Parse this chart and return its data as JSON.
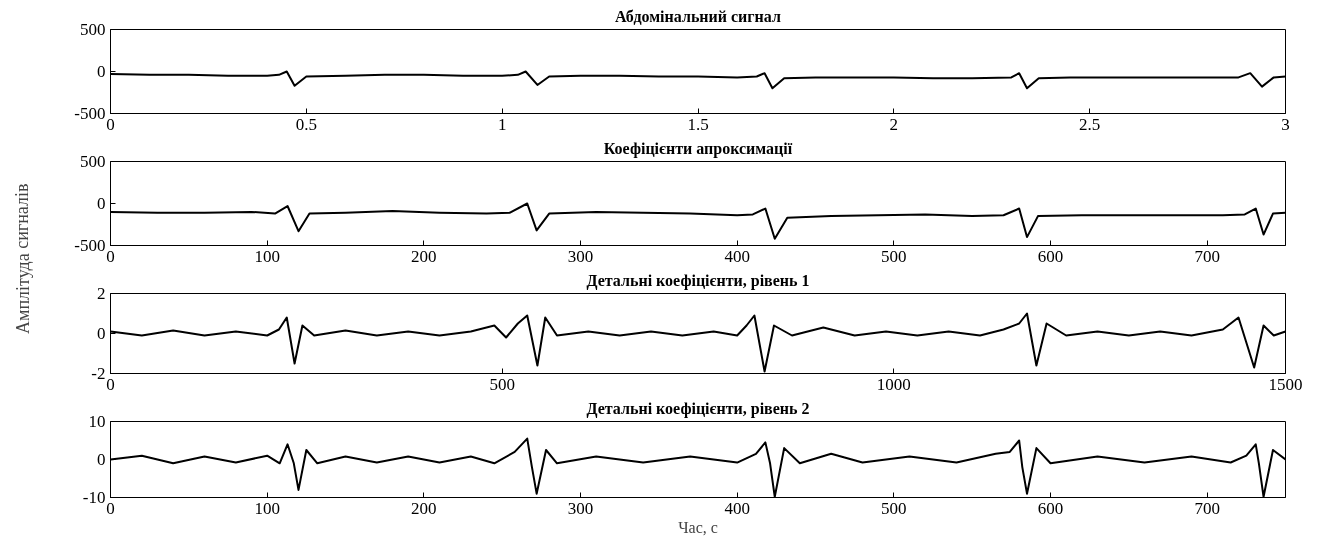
{
  "chart_data": [
    {
      "type": "line",
      "title": "Абдомінальний сигнал",
      "grid": false,
      "marker": "none",
      "line_style": "solid",
      "xlim": [
        0,
        3
      ],
      "xticks": [
        0,
        0.5,
        1,
        1.5,
        2,
        2.5,
        3
      ],
      "ylim": [
        -500,
        500
      ],
      "yticks": [
        -500,
        0,
        500
      ],
      "series": [
        {
          "color": "#000000",
          "x": [
            0,
            0.1,
            0.2,
            0.3,
            0.4,
            0.43,
            0.45,
            0.47,
            0.5,
            0.6,
            0.7,
            0.8,
            0.9,
            1.0,
            1.04,
            1.06,
            1.09,
            1.12,
            1.2,
            1.3,
            1.4,
            1.5,
            1.6,
            1.65,
            1.67,
            1.69,
            1.72,
            1.8,
            1.9,
            2.0,
            2.1,
            2.2,
            2.3,
            2.32,
            2.34,
            2.37,
            2.45,
            2.6,
            2.7,
            2.8,
            2.88,
            2.91,
            2.94,
            2.97,
            3.0
          ],
          "values": [
            -30,
            -40,
            -40,
            -50,
            -50,
            -40,
            0,
            -170,
            -60,
            -50,
            -40,
            -40,
            -50,
            -50,
            -40,
            0,
            -160,
            -60,
            -50,
            -50,
            -60,
            -60,
            -70,
            -60,
            -20,
            -200,
            -80,
            -70,
            -70,
            -70,
            -80,
            -80,
            -70,
            -20,
            -200,
            -80,
            -70,
            -70,
            -70,
            -70,
            -70,
            -20,
            -180,
            -70,
            -60
          ]
        }
      ]
    },
    {
      "type": "line",
      "title": "Коефіцієнти апроксимації",
      "grid": false,
      "marker": "none",
      "line_style": "solid",
      "xlim": [
        0,
        750
      ],
      "xticks": [
        0,
        100,
        200,
        300,
        400,
        500,
        600,
        700
      ],
      "ylim": [
        -500,
        500
      ],
      "yticks": [
        -500,
        0,
        500
      ],
      "series": [
        {
          "color": "#000000",
          "x": [
            0,
            30,
            60,
            90,
            105,
            113,
            120,
            127,
            150,
            180,
            210,
            240,
            255,
            266,
            272,
            280,
            310,
            340,
            370,
            400,
            410,
            418,
            424,
            432,
            460,
            490,
            520,
            550,
            570,
            580,
            585,
            592,
            620,
            650,
            680,
            710,
            724,
            731,
            736,
            742,
            750
          ],
          "values": [
            -100,
            -110,
            -110,
            -100,
            -120,
            -30,
            -330,
            -120,
            -110,
            -90,
            -110,
            -120,
            -110,
            0,
            -320,
            -120,
            -100,
            -110,
            -120,
            -140,
            -130,
            -60,
            -420,
            -170,
            -150,
            -140,
            -130,
            -150,
            -140,
            -60,
            -400,
            -150,
            -140,
            -140,
            -140,
            -140,
            -130,
            -60,
            -370,
            -120,
            -110
          ]
        }
      ]
    },
    {
      "type": "line",
      "title": "Детальні коефіцієнти, рівень 1",
      "ylabel": "Амплітуда сигналів",
      "grid": false,
      "marker": "none",
      "line_style": "solid",
      "xlim": [
        0,
        1500
      ],
      "xticks": [
        0,
        500,
        1000,
        1500
      ],
      "ylim": [
        -2,
        2
      ],
      "yticks": [
        -2,
        0,
        2
      ],
      "series": [
        {
          "color": "#000000",
          "x": [
            0,
            40,
            80,
            120,
            160,
            200,
            215,
            225,
            235,
            245,
            260,
            300,
            340,
            380,
            420,
            460,
            490,
            505,
            520,
            532,
            545,
            555,
            570,
            610,
            650,
            690,
            730,
            770,
            800,
            812,
            822,
            835,
            847,
            870,
            910,
            950,
            990,
            1030,
            1070,
            1110,
            1140,
            1160,
            1170,
            1182,
            1195,
            1220,
            1260,
            1300,
            1340,
            1380,
            1420,
            1440,
            1460,
            1472,
            1485,
            1500
          ],
          "values": [
            0.1,
            -0.1,
            0.15,
            -0.1,
            0.1,
            -0.1,
            0.2,
            0.8,
            -1.5,
            0.4,
            -0.1,
            0.15,
            -0.1,
            0.1,
            -0.1,
            0.1,
            0.4,
            -0.2,
            0.5,
            0.9,
            -1.6,
            0.8,
            -0.1,
            0.1,
            -0.1,
            0.1,
            -0.1,
            0.1,
            -0.1,
            0.4,
            0.9,
            -1.9,
            0.4,
            -0.1,
            0.3,
            -0.1,
            0.1,
            -0.1,
            0.1,
            -0.1,
            0.2,
            0.5,
            1.0,
            -1.6,
            0.5,
            -0.1,
            0.1,
            -0.1,
            0.1,
            -0.1,
            0.2,
            0.8,
            -1.7,
            0.4,
            -0.1,
            0.1
          ]
        }
      ]
    },
    {
      "type": "line",
      "title": "Детальні коефіцієнти, рівень 2",
      "xlabel": "Час, с",
      "grid": false,
      "marker": "none",
      "line_style": "solid",
      "xlim": [
        0,
        750
      ],
      "xticks": [
        0,
        100,
        200,
        300,
        400,
        500,
        600,
        700
      ],
      "ylim": [
        -10,
        10
      ],
      "yticks": [
        -10,
        0,
        10
      ],
      "series": [
        {
          "color": "#000000",
          "x": [
            0,
            20,
            40,
            60,
            80,
            100,
            108,
            113,
            117,
            120,
            125,
            132,
            150,
            170,
            190,
            210,
            230,
            245,
            258,
            266,
            269,
            272,
            278,
            285,
            310,
            340,
            370,
            400,
            412,
            418,
            421,
            424,
            430,
            440,
            460,
            480,
            510,
            540,
            565,
            574,
            580,
            582,
            585,
            591,
            600,
            630,
            660,
            690,
            715,
            725,
            731,
            733,
            736,
            742,
            750
          ],
          "values": [
            0,
            1,
            -1,
            0.8,
            -0.8,
            1,
            -1,
            4,
            -1,
            -8,
            2.5,
            -1,
            0.8,
            -0.8,
            0.8,
            -0.8,
            0.8,
            -1,
            2,
            5.5,
            -2,
            -9,
            2.5,
            -1,
            0.8,
            -0.8,
            0.8,
            -0.8,
            1.5,
            4.5,
            -1,
            -9.8,
            3,
            -1,
            1.5,
            -0.8,
            0.8,
            -0.8,
            1.5,
            2,
            5,
            -2,
            -9,
            3,
            -1,
            0.8,
            -0.8,
            0.8,
            -0.8,
            1,
            4,
            -1,
            -9.8,
            2.5,
            0
          ]
        }
      ]
    }
  ]
}
